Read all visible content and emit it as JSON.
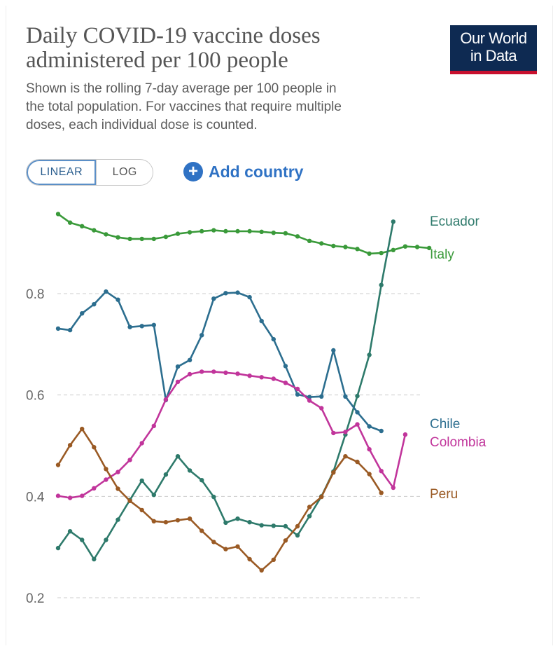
{
  "header": {
    "title_line1": "Daily COVID-19 vaccine doses",
    "title_line2": "administered per 100 people",
    "subtitle_line1": "Shown is the rolling 7-day average per 100 people in",
    "subtitle_line2": "the total population. For vaccines that require multiple",
    "subtitle_line3": "doses, each individual dose is counted.",
    "logo_line1": "Our World",
    "logo_line2": "in Data"
  },
  "controls": {
    "scale_linear": "LINEAR",
    "scale_log": "LOG",
    "add_country": "Add country"
  },
  "colors": {
    "Ecuador": "#2e7a6b",
    "Italy": "#3a9a3a",
    "Chile": "#2c6e8f",
    "Colombia": "#c1359b",
    "Peru": "#9a5a24",
    "grid": "#cccccc",
    "accent": "#2f72c4"
  },
  "chart_data": {
    "type": "line",
    "ylim": [
      0.2,
      0.96
    ],
    "y_ticks": [
      "0.2",
      "0.4",
      "0.6",
      "0.8"
    ],
    "grid": true,
    "xlabel": "",
    "ylabel": "",
    "legend": "right-inline",
    "series": [
      {
        "name": "Italy",
        "values": [
          0.957,
          0.94,
          0.933,
          0.925,
          0.917,
          0.911,
          0.908,
          0.908,
          0.908,
          0.912,
          0.918,
          0.921,
          0.923,
          0.925,
          0.923,
          0.923,
          0.923,
          0.922,
          0.92,
          0.919,
          0.913,
          0.904,
          0.899,
          0.894,
          0.892,
          0.888,
          0.879,
          0.88,
          0.886,
          0.893,
          0.892,
          0.89
        ]
      },
      {
        "name": "Ecuador",
        "values": [
          0.298,
          0.331,
          0.314,
          0.276,
          0.314,
          0.354,
          0.393,
          0.431,
          0.403,
          0.443,
          0.479,
          0.451,
          0.432,
          0.399,
          0.348,
          0.356,
          0.349,
          0.343,
          0.342,
          0.341,
          0.323,
          0.361,
          0.4,
          0.449,
          0.522,
          0.598,
          0.679,
          0.817,
          0.942
        ]
      },
      {
        "name": "Chile",
        "values": [
          0.731,
          0.728,
          0.761,
          0.779,
          0.804,
          0.788,
          0.734,
          0.736,
          0.738,
          0.59,
          0.656,
          0.669,
          0.718,
          0.79,
          0.801,
          0.802,
          0.793,
          0.746,
          0.71,
          0.657,
          0.601,
          0.596,
          0.597,
          0.688,
          0.597,
          0.566,
          0.538,
          0.529
        ]
      },
      {
        "name": "Colombia",
        "values": [
          0.401,
          0.397,
          0.401,
          0.416,
          0.433,
          0.448,
          0.472,
          0.505,
          0.539,
          0.591,
          0.626,
          0.641,
          0.646,
          0.646,
          0.644,
          0.642,
          0.638,
          0.635,
          0.632,
          0.624,
          0.612,
          0.589,
          0.574,
          0.525,
          0.527,
          0.542,
          0.493,
          0.45,
          0.417,
          0.522
        ]
      },
      {
        "name": "Peru",
        "values": [
          0.462,
          0.501,
          0.533,
          0.497,
          0.454,
          0.415,
          0.391,
          0.373,
          0.351,
          0.349,
          0.353,
          0.356,
          0.332,
          0.31,
          0.296,
          0.301,
          0.276,
          0.254,
          0.275,
          0.313,
          0.341,
          0.379,
          0.399,
          0.447,
          0.479,
          0.468,
          0.444,
          0.407
        ]
      }
    ]
  }
}
